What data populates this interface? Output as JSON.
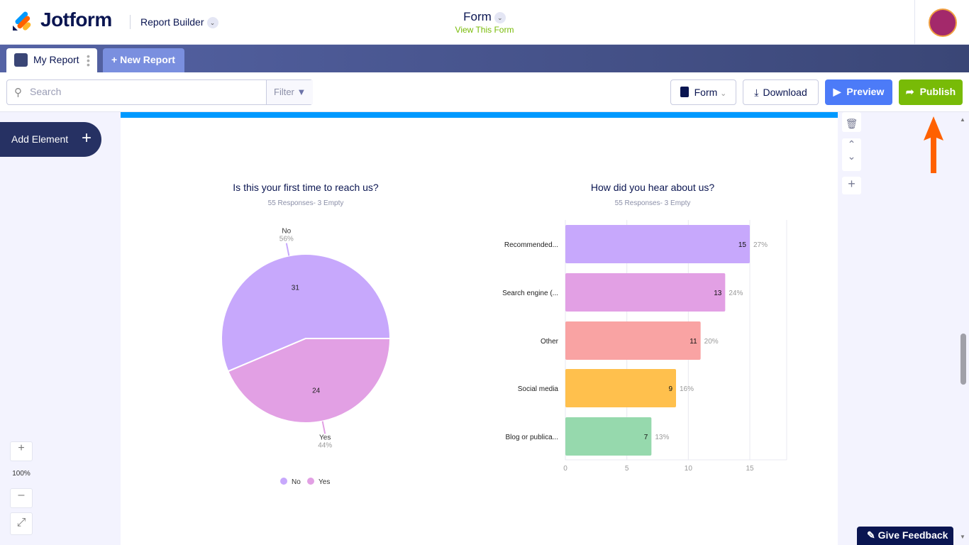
{
  "header": {
    "brand": "Jotform",
    "app": "Report Builder",
    "form_title": "Form",
    "form_link": "View This Form"
  },
  "tabs": [
    {
      "label": "My Report"
    },
    {
      "label": "New Report"
    }
  ],
  "toolbar": {
    "search_placeholder": "Search",
    "filter": "Filter",
    "form": "Form",
    "download": "Download",
    "preview": "Preview",
    "publish": "Publish"
  },
  "sidebar": {
    "add_element": "Add Element"
  },
  "zoom": {
    "level": "100%"
  },
  "feedback": "Give Feedback",
  "colors": {
    "blue_bar": "#0099ff",
    "publish": "#78bb07",
    "preview": "#4c7bf8",
    "arrow": "#ff6100"
  },
  "chart_data": [
    {
      "type": "pie",
      "title": "Is this your first time to reach us?",
      "subtitle": "55 Responses- 3 Empty",
      "labels": [
        "No",
        "Yes"
      ],
      "values": [
        31,
        24
      ],
      "percents": [
        "56%",
        "44%"
      ],
      "colors": [
        "#c7a8fc",
        "#e2a0e4"
      ],
      "legend": "bottom"
    },
    {
      "type": "bar",
      "orientation": "horizontal",
      "title": "How did you hear about us?",
      "subtitle": "55 Responses- 3 Empty",
      "categories": [
        "Recommended...",
        "Search engine (...",
        "Other",
        "Social media",
        "Blog or publica..."
      ],
      "values": [
        15,
        13,
        11,
        9,
        7
      ],
      "percents": [
        "27%",
        "24%",
        "20%",
        "16%",
        "13%"
      ],
      "colors": [
        "#c7a8fc",
        "#e2a0e4",
        "#f9a3a3",
        "#ffc04d",
        "#96d9ad"
      ],
      "xticks": [
        0,
        5,
        10,
        15
      ],
      "xlim": [
        0,
        18
      ],
      "grid": true
    }
  ]
}
